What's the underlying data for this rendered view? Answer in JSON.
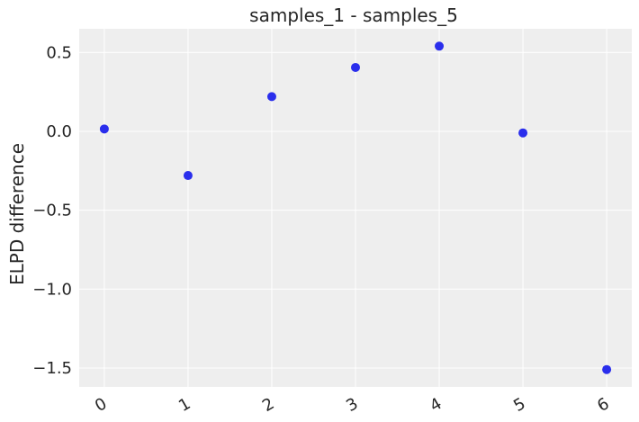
{
  "chart_data": {
    "type": "scatter",
    "title": "samples_1 - samples_5",
    "xlabel": "",
    "ylabel": "ELPD difference",
    "x": [
      0,
      1,
      2,
      3,
      4,
      5,
      6
    ],
    "y": [
      0.015,
      -0.28,
      0.22,
      0.405,
      0.54,
      -0.01,
      -1.51
    ],
    "xticks": [
      "0",
      "1",
      "2",
      "3",
      "4",
      "5",
      "6"
    ],
    "yticks": [
      0.5,
      0.0,
      -0.5,
      -1.0,
      -1.5
    ],
    "ytick_labels": [
      "0.5",
      "0.0",
      "−0.5",
      "−1.0",
      "−1.5"
    ],
    "xlim": [
      -0.3,
      6.3
    ],
    "ylim": [
      -1.62,
      0.65
    ],
    "grid": true,
    "colors": {
      "background": "#eeeeee",
      "grid": "#ffffff",
      "point": "#2a2eec"
    }
  }
}
